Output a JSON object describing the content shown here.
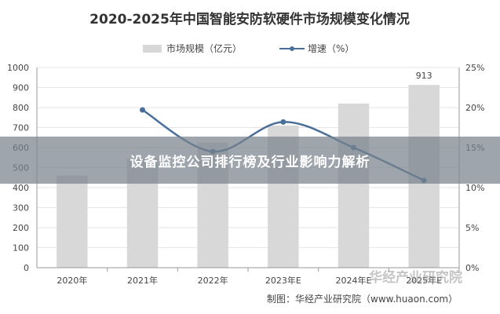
{
  "chart_data": {
    "type": "bar",
    "title": "2020-2025年中国智能安防软硬件市场规模变化情况",
    "categories": [
      "2020年",
      "2021年",
      "2022年",
      "2023年E",
      "2024年E",
      "2025年E"
    ],
    "series": [
      {
        "name": "市场规模（亿元）",
        "type": "bar",
        "axis": "left",
        "values": [
          460,
          545,
          625,
          710,
          820,
          913
        ]
      },
      {
        "name": "增速（%）",
        "type": "line",
        "axis": "right",
        "values": [
          null,
          19.7,
          14.5,
          18.2,
          15.0,
          10.9
        ]
      }
    ],
    "y_left": {
      "min": 0,
      "max": 1000,
      "ticks": [
        "0",
        "100",
        "200",
        "300",
        "400",
        "500",
        "600",
        "700",
        "800",
        "900",
        "1000"
      ]
    },
    "y_right": {
      "min": 0,
      "max": 25,
      "ticks": [
        "0%",
        "5%",
        "10%",
        "15%",
        "20%",
        "25%"
      ]
    },
    "data_labels": [
      {
        "index": 5,
        "text": "913"
      }
    ],
    "legend_position": "top-center",
    "grid": true,
    "colors": {
      "bar": "#d8d8d8",
      "line": "#4a6f9b",
      "axis": "#999999",
      "grid": "#e6e6e6"
    }
  },
  "source": "制图：华经产业研究院（www.huaon.com）",
  "banner": {
    "text": "设备监控公司排行榜及行业影响力解析"
  },
  "watermark": "华经产业研究院"
}
